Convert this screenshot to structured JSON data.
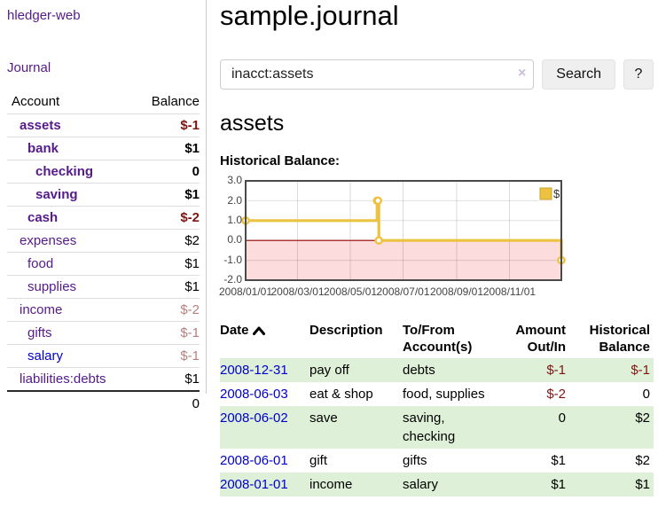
{
  "app": {
    "title": "hledger-web"
  },
  "sidebar": {
    "journal_label": "Journal",
    "accounts_table": {
      "headers": {
        "account": "Account",
        "balance": "Balance"
      },
      "rows": [
        {
          "name": "assets",
          "balance": "$-1",
          "level": 1,
          "bold": true,
          "balance_style": "neg-strong"
        },
        {
          "name": "bank",
          "balance": "$1",
          "level": 2,
          "bold": true,
          "balance_style": "normal"
        },
        {
          "name": "checking",
          "balance": "0",
          "level": 3,
          "bold": true,
          "balance_style": "normal"
        },
        {
          "name": "saving",
          "balance": "$1",
          "level": 3,
          "bold": true,
          "balance_style": "normal"
        },
        {
          "name": "cash",
          "balance": "$-2",
          "level": 2,
          "bold": true,
          "balance_style": "neg-strong"
        },
        {
          "name": "expenses",
          "balance": "$2",
          "level": 1,
          "bold": false,
          "balance_style": "normal"
        },
        {
          "name": "food",
          "balance": "$1",
          "level": 2,
          "bold": false,
          "balance_style": "normal"
        },
        {
          "name": "supplies",
          "balance": "$1",
          "level": 2,
          "bold": false,
          "balance_style": "normal"
        },
        {
          "name": "income",
          "balance": "$-2",
          "level": 1,
          "bold": false,
          "balance_style": "neg-muted"
        },
        {
          "name": "gifts",
          "balance": "$-1",
          "level": 2,
          "bold": false,
          "balance_style": "neg-muted"
        },
        {
          "name": "salary",
          "balance": "$-1",
          "level": 2,
          "bold": false,
          "balance_style": "neg-muted",
          "link_style": "unvisited"
        },
        {
          "name": "liabilities:debts",
          "balance": "$1",
          "level": 1,
          "bold": false,
          "balance_style": "normal"
        }
      ],
      "total": "0"
    }
  },
  "main": {
    "title": "sample.journal",
    "search": {
      "value": "inacct:assets",
      "clear_icon": "×",
      "button_label": "Search",
      "help_label": "?"
    },
    "account_heading": "assets",
    "chart_label": "Historical Balance:"
  },
  "chart_data": {
    "type": "line",
    "step": true,
    "title": "Historical Balance:",
    "series": [
      {
        "name": "$",
        "color": "#edc240",
        "points": [
          [
            "2008-01-01",
            1
          ],
          [
            "2008-06-01",
            2
          ],
          [
            "2008-06-02",
            2
          ],
          [
            "2008-06-03",
            0
          ],
          [
            "2008-12-31",
            -1
          ]
        ]
      }
    ],
    "x_ticks": [
      "2008/01/01",
      "2008/03/01",
      "2008/05/01",
      "2008/07/01",
      "2008/09/01",
      "2008/11/01"
    ],
    "y_ticks": [
      3.0,
      2.0,
      1.0,
      0.0,
      -1.0,
      -2.0
    ],
    "ylim": [
      -2,
      3
    ],
    "xrange": [
      "2008-01-01",
      "2008-12-31"
    ],
    "grid": true,
    "legend_position": "top-right",
    "negative_region_color": "#fcdcdc",
    "zero_line_color": "#8b0000"
  },
  "register_table": {
    "headers": {
      "date": "Date",
      "description": "Description",
      "account": "To/From Account(s)",
      "amount": "Amount Out/In",
      "balance": "Historical Balance"
    },
    "rows": [
      {
        "date": "2008-12-31",
        "description": "pay off",
        "accounts": "debts",
        "amount": "$-1",
        "balance": "$-1",
        "amount_neg": true,
        "balance_neg": true,
        "highlight": true
      },
      {
        "date": "2008-06-03",
        "description": "eat & shop",
        "accounts": "food, supplies",
        "amount": "$-2",
        "balance": "0",
        "amount_neg": true,
        "balance_neg": false,
        "highlight": false
      },
      {
        "date": "2008-06-02",
        "description": "save",
        "accounts": "saving, checking",
        "amount": "0",
        "balance": "$2",
        "amount_neg": false,
        "balance_neg": false,
        "highlight": true
      },
      {
        "date": "2008-06-01",
        "description": "gift",
        "accounts": "gifts",
        "amount": "$1",
        "balance": "$2",
        "amount_neg": false,
        "balance_neg": false,
        "highlight": false
      },
      {
        "date": "2008-01-01",
        "description": "income",
        "accounts": "salary",
        "amount": "$1",
        "balance": "$1",
        "amount_neg": false,
        "balance_neg": false,
        "highlight": true
      }
    ]
  },
  "colors": {
    "link_visited": "#551a8b",
    "link_unvisited": "#0000cc",
    "negative_strong": "#7f1511",
    "negative_muted": "#b97f7f",
    "row_highlight": "#dff0d8",
    "series_gold": "#edc240",
    "chart_negative_fill": "#fcdcdc",
    "zero_line": "#8b0000",
    "chart_border": "#4a4a4a"
  }
}
